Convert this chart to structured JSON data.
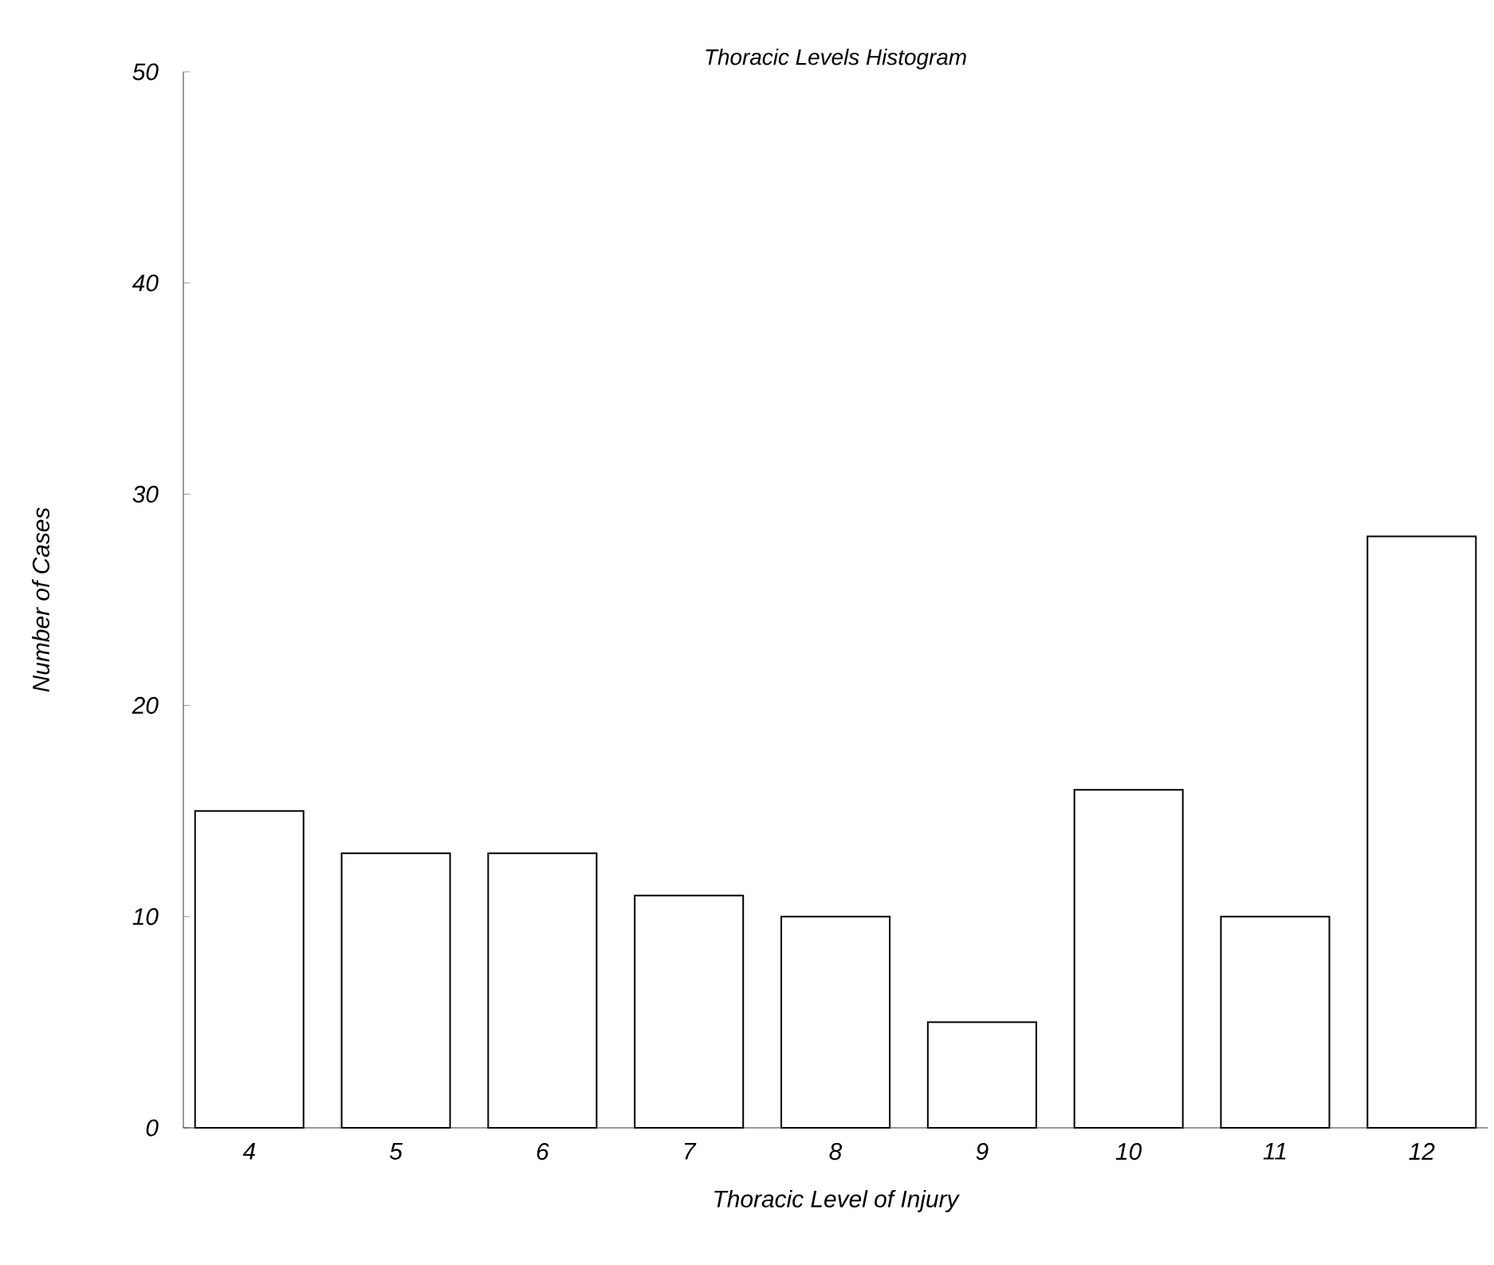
{
  "chart_data": {
    "type": "bar",
    "title": "Thoracic Levels Histogram",
    "xlabel": "Thoracic Level of Injury",
    "ylabel": "Number of Cases",
    "categories": [
      "4",
      "5",
      "6",
      "7",
      "8",
      "9",
      "10",
      "11",
      "12"
    ],
    "values": [
      15,
      13,
      13,
      11,
      10,
      5,
      16,
      10,
      28
    ],
    "color": "#ffffff",
    "ylim": [
      0,
      50
    ],
    "yticks": [
      0,
      10,
      20,
      30,
      40,
      50
    ]
  }
}
